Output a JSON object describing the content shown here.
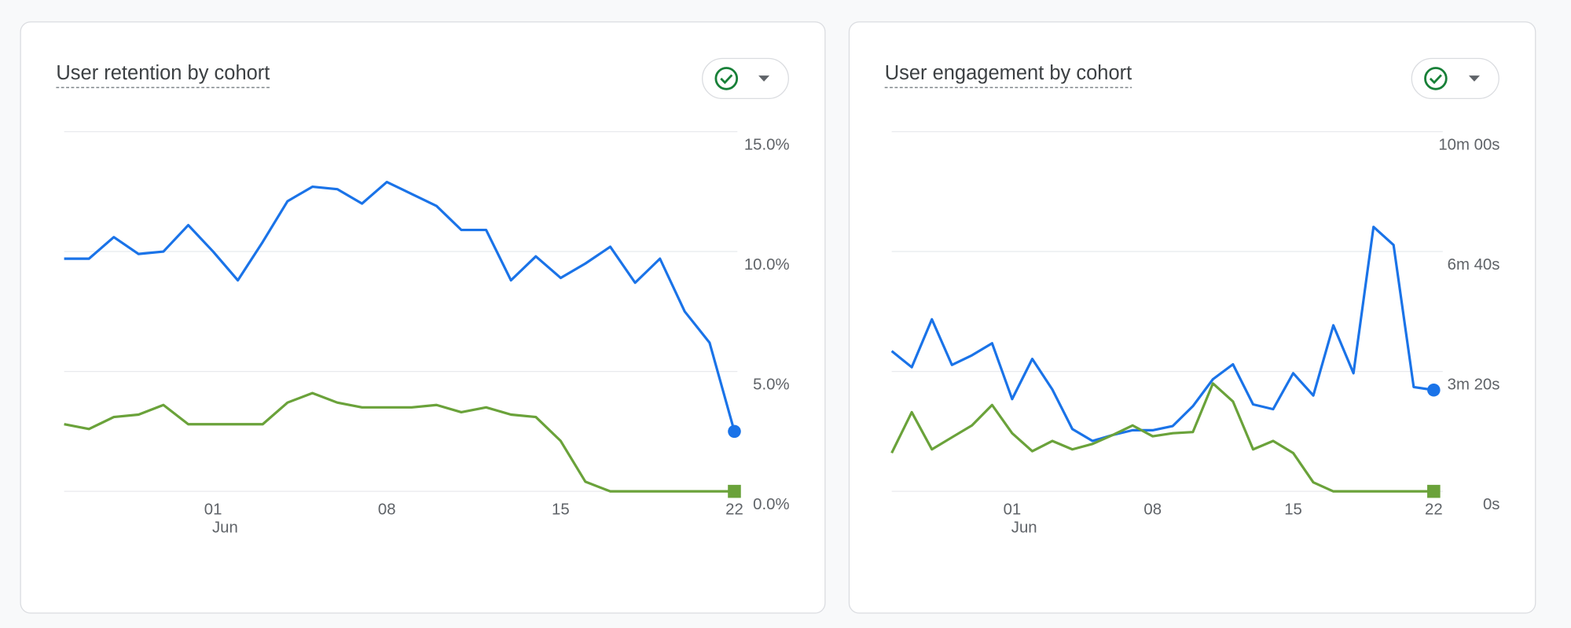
{
  "chart_data": [
    {
      "type": "line",
      "title": "User retention by cohort",
      "categories": [
        null,
        null,
        null,
        null,
        null,
        null,
        "01",
        null,
        null,
        null,
        null,
        null,
        null,
        "08",
        null,
        null,
        null,
        null,
        null,
        null,
        "15",
        null,
        null,
        null,
        null,
        null,
        null,
        "22"
      ],
      "month_label": "Jun",
      "series": [
        {
          "color": "#1a73e8",
          "values": [
            9.7,
            9.7,
            10.6,
            9.9,
            10.0,
            11.1,
            10.0,
            8.8,
            10.4,
            12.1,
            12.7,
            12.6,
            12.0,
            12.9,
            12.4,
            11.9,
            10.9,
            10.9,
            8.8,
            9.8,
            8.9,
            9.5,
            10.2,
            8.7,
            9.7,
            7.5,
            6.2,
            2.5
          ]
        },
        {
          "color": "#6aa23a",
          "values": [
            2.8,
            2.6,
            3.1,
            3.2,
            3.6,
            2.8,
            2.8,
            2.8,
            2.8,
            3.7,
            4.1,
            3.7,
            3.5,
            3.5,
            3.5,
            3.6,
            3.3,
            3.5,
            3.2,
            3.1,
            2.1,
            0.4,
            0,
            0,
            0,
            0,
            0,
            0
          ]
        }
      ],
      "ylim": [
        0,
        15
      ],
      "yticks": [
        {
          "value": 0,
          "label": "0.0%"
        },
        {
          "value": 5,
          "label": "5.0%"
        },
        {
          "value": 10,
          "label": "10.0%"
        },
        {
          "value": 15,
          "label": "15.0%"
        }
      ],
      "grid": true
    },
    {
      "type": "line",
      "title": "User engagement by cohort",
      "categories": [
        null,
        null,
        null,
        null,
        null,
        null,
        "01",
        null,
        null,
        null,
        null,
        null,
        null,
        "08",
        null,
        null,
        null,
        null,
        null,
        null,
        "15",
        null,
        null,
        null,
        null,
        null,
        null,
        "22"
      ],
      "month_label": "Jun",
      "series": [
        {
          "color": "#1a73e8",
          "values": [
            234,
            207,
            287,
            211,
            227,
            247,
            154,
            221,
            170,
            104,
            84,
            94,
            102,
            102,
            109,
            142,
            187,
            212,
            145,
            137,
            197,
            160,
            277,
            197,
            441,
            411,
            174,
            169
          ]
        },
        {
          "color": "#6aa23a",
          "values": [
            64,
            132,
            70,
            90,
            110,
            144,
            97,
            67,
            84,
            70,
            79,
            94,
            110,
            92,
            97,
            99,
            180,
            150,
            70,
            84,
            64,
            15,
            0,
            0,
            0,
            0,
            0,
            0
          ]
        }
      ],
      "ylim": [
        0,
        600
      ],
      "yticks": [
        {
          "value": 0,
          "label": "0s"
        },
        {
          "value": 200,
          "label": "3m 20s"
        },
        {
          "value": 400,
          "label": "6m 40s"
        },
        {
          "value": 600,
          "label": "10m 00s"
        }
      ],
      "grid": true
    }
  ]
}
